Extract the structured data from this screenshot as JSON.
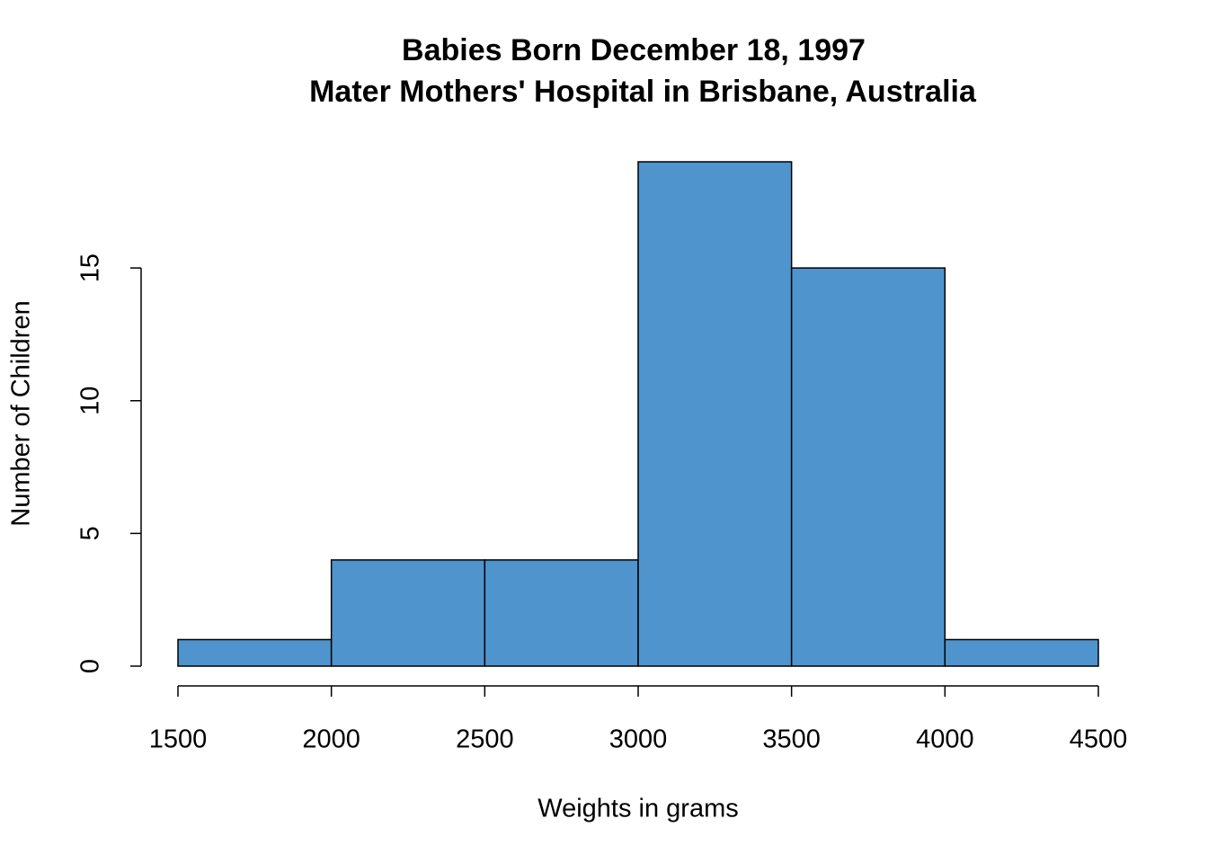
{
  "chart_data": {
    "type": "histogram",
    "title": [
      "Babies Born December 18, 1997",
      "Mater Mothers' Hospital in Brisbane, Australia"
    ],
    "x_label": "Weights in grams",
    "y_label": "Number of Children",
    "bins": [
      1500,
      2000,
      2500,
      3000,
      3500,
      4000,
      4500
    ],
    "counts": [
      1,
      4,
      4,
      19,
      15,
      1
    ],
    "color": "#4f94cd",
    "xlim": [
      1500,
      4500
    ],
    "xticks": [
      1500,
      2000,
      2500,
      3000,
      3500,
      4000,
      4500
    ],
    "ylim": [
      0,
      19
    ],
    "yticks": [
      0,
      5,
      10,
      15
    ]
  }
}
